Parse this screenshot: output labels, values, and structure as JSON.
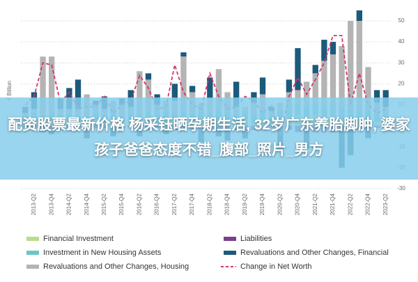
{
  "overlay_title": "配资股票最新价格 杨采钰晒孕期生活, 32岁广东养胎脚肿, 婆家孩子爸爸态度不错_腹部_照片_男方",
  "chart_data": {
    "type": "bar",
    "stacked": true,
    "y_label": "€ Billion",
    "categories": [
      null,
      "2013-Q2",
      null,
      "2013-Q4",
      null,
      "2014-Q2",
      null,
      "2014-Q4",
      null,
      "2015-Q2",
      null,
      "2015-Q4",
      null,
      "2016-Q2",
      null,
      "2016-Q4",
      null,
      "2017-Q2",
      null,
      "2017-Q4",
      null,
      "2018-Q2",
      null,
      "2018-Q4",
      null,
      "2019-Q2",
      null,
      "2019-Q4",
      null,
      "2020-Q2",
      null,
      "2020-Q4",
      null,
      "2021-Q2",
      null,
      "2021-Q4",
      null,
      "2022-Q2",
      null,
      "2022-Q4",
      null,
      "2023-Q2"
    ],
    "ylim": [
      -30,
      50
    ],
    "yticks": [
      -30,
      -20,
      -10,
      0,
      10,
      20,
      30,
      40,
      50
    ],
    "grid": true,
    "series": [
      {
        "name": "Financial Investment",
        "color": "#b9dc8e",
        "values": [
          2,
          3,
          2,
          3,
          2,
          3,
          2,
          2,
          3,
          2,
          3,
          2,
          3,
          2,
          3,
          2,
          3,
          2,
          3,
          2,
          3,
          2,
          3,
          2,
          2,
          3,
          2,
          3,
          2,
          3,
          4,
          5,
          4,
          5,
          4,
          4,
          3,
          3,
          2,
          3,
          2,
          2
        ]
      },
      {
        "name": "Investment in New Housing Assets",
        "color": "#6cc4c9",
        "values": [
          3,
          3,
          3,
          3,
          3,
          3,
          3,
          3,
          3,
          3,
          3,
          3,
          3,
          4,
          4,
          4,
          4,
          4,
          4,
          4,
          4,
          4,
          4,
          4,
          4,
          4,
          4,
          4,
          3,
          4,
          4,
          5,
          5,
          5,
          5,
          5,
          5,
          5,
          5,
          5,
          4,
          4
        ]
      },
      {
        "name": "Revaluations and Other Changes, Housing",
        "color": "#b4b4b4",
        "values": [
          1,
          2,
          28,
          27,
          3,
          2,
          3,
          10,
          4,
          3,
          6,
          5,
          3,
          20,
          15,
          4,
          5,
          6,
          26,
          10,
          4,
          7,
          20,
          10,
          3,
          2,
          5,
          8,
          2,
          4,
          8,
          7,
          12,
          15,
          22,
          25,
          30,
          42,
          43,
          20,
          5,
          3
        ]
      },
      {
        "name": "Liabilities",
        "color": "#7b3f8c",
        "values": [
          -1,
          -1,
          -1,
          -1,
          -1,
          -1,
          -1,
          -1,
          -1,
          -1,
          -1,
          -1,
          -1,
          -2,
          -2,
          -1,
          -2,
          -2,
          -2,
          -2,
          -2,
          -2,
          -2,
          -2,
          -2,
          -2,
          -2,
          -2,
          -1,
          -2,
          -2,
          -3,
          -3,
          -3,
          -3,
          -3,
          -2,
          -2,
          -2,
          -2,
          -1,
          -1
        ]
      },
      {
        "name": "Revaluations and Other Changes, Financial",
        "color": "#1b5a7a",
        "values": [
          3,
          8,
          -2,
          -3,
          5,
          10,
          14,
          -5,
          2,
          6,
          -4,
          3,
          8,
          -3,
          3,
          5,
          -2,
          8,
          2,
          3,
          -6,
          10,
          -3,
          -5,
          12,
          -4,
          5,
          8,
          2,
          -10,
          6,
          20,
          -8,
          4,
          10,
          6,
          -18,
          -12,
          5,
          -4,
          6,
          8
        ]
      },
      {
        "name": "Change in Net Worth",
        "type": "line",
        "color": "#d6336c",
        "values": [
          10,
          14,
          30,
          29,
          11,
          16,
          8,
          9,
          9,
          14,
          6,
          10,
          12,
          24,
          18,
          8,
          9,
          29,
          16,
          10,
          8,
          25,
          14,
          8,
          9,
          14,
          12,
          6,
          10,
          -5,
          14,
          23,
          15,
          22,
          30,
          43,
          43,
          10,
          25,
          10,
          6,
          8
        ]
      }
    ]
  }
}
